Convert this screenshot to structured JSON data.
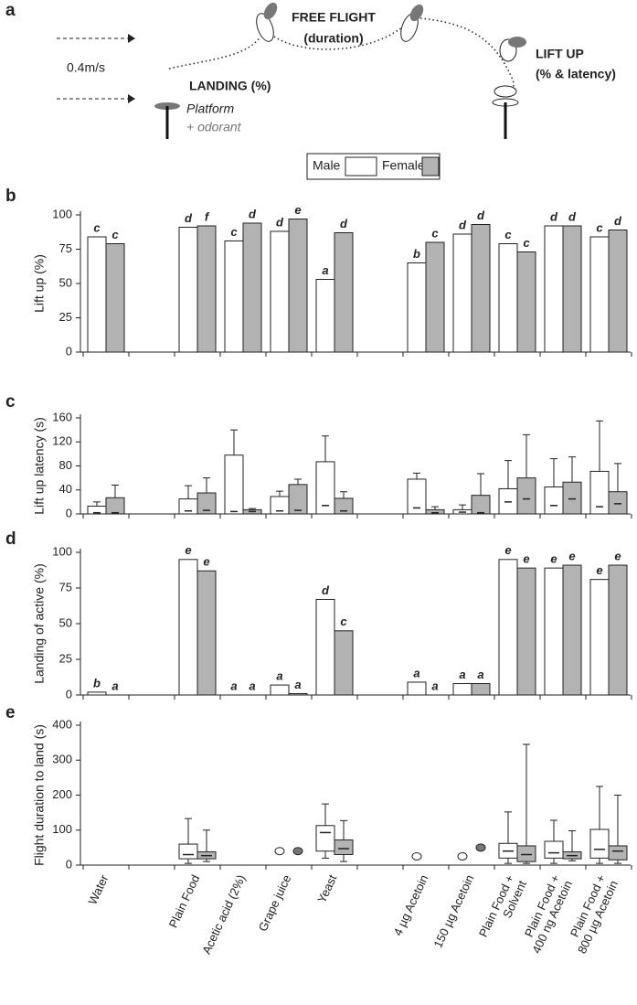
{
  "diagram": {
    "panel": "a",
    "free_flight": "FREE FLIGHT",
    "duration": "(duration)",
    "speed": "0.4m/s",
    "landing": "LANDING (%)",
    "platform": "Platform",
    "odorant": "+ odorant",
    "lift_up": "LIFT UP",
    "lift_up_detail": "(% & latency)"
  },
  "chart_data": [
    {
      "type": "bar",
      "panel": "b",
      "ylabel": "Lift up (%)",
      "ylim": [
        0,
        100
      ],
      "yticks": [
        0,
        25,
        50,
        75,
        100
      ],
      "series": [
        {
          "name": "Male",
          "color": "#ffffff",
          "values": [
            84,
            null,
            91,
            81,
            88,
            53,
            null,
            65,
            86,
            79,
            92,
            84
          ],
          "letters": [
            "c",
            null,
            "d",
            "c",
            "d",
            "a",
            null,
            "b",
            "d",
            "c",
            "d",
            "c"
          ]
        },
        {
          "name": "Female",
          "color": "#b3b3b3",
          "values": [
            79,
            null,
            92,
            94,
            97,
            87,
            null,
            80,
            93,
            73,
            92,
            89
          ],
          "letters": [
            "c",
            null,
            "f",
            "d",
            "e",
            "d",
            null,
            "c",
            "d",
            "c",
            "d",
            "d"
          ]
        }
      ]
    },
    {
      "type": "latency",
      "panel": "c",
      "ylabel": "Lift up latency (s)",
      "ylim": [
        0,
        160
      ],
      "yticks": [
        0,
        40,
        80,
        120,
        160
      ],
      "series": [
        {
          "color": "#ffffff",
          "values": [
            13,
            null,
            25,
            98,
            29,
            87,
            null,
            58,
            7,
            42,
            45,
            71
          ],
          "medians": [
            2,
            null,
            5,
            4,
            5,
            14,
            null,
            10,
            3,
            20,
            14,
            12
          ],
          "whiskers": [
            20,
            null,
            47,
            140,
            38,
            130,
            null,
            68,
            15,
            89,
            92,
            155
          ]
        },
        {
          "color": "#b3b3b3",
          "values": [
            27,
            null,
            35,
            7,
            49,
            26,
            null,
            7,
            31,
            60,
            53,
            37
          ],
          "medians": [
            2,
            null,
            6,
            4,
            6,
            5,
            null,
            2,
            2,
            25,
            25,
            17
          ],
          "whiskers": [
            48,
            null,
            60,
            9,
            58,
            37,
            null,
            12,
            67,
            132,
            95,
            84
          ]
        }
      ]
    },
    {
      "type": "bar",
      "panel": "d",
      "ylabel": "Landing of active (%)",
      "ylim": [
        0,
        100
      ],
      "yticks": [
        0,
        25,
        50,
        75,
        100
      ],
      "series": [
        {
          "color": "#ffffff",
          "values": [
            2,
            null,
            95,
            0,
            7,
            67,
            null,
            9,
            8,
            95,
            89,
            81
          ],
          "letters": [
            "b",
            null,
            "e",
            "a",
            "a",
            "d",
            null,
            "a",
            "a",
            "e",
            "e",
            "e"
          ]
        },
        {
          "color": "#b3b3b3",
          "values": [
            0,
            null,
            87,
            0,
            1,
            45,
            null,
            0,
            8,
            89,
            91,
            91
          ],
          "letters": [
            "a",
            null,
            "e",
            "a",
            "a",
            "c",
            null,
            "a",
            "a",
            "e",
            "e",
            "e"
          ]
        }
      ]
    },
    {
      "type": "box",
      "panel": "e",
      "ylabel": "Flight duration to land (s)",
      "ylim": [
        0,
        400
      ],
      "yticks": [
        0,
        100,
        200,
        300,
        400
      ],
      "categories": [
        "Water",
        null,
        "Plain Food",
        "Acetic acid (2%)",
        "Grape juice",
        "Yeast",
        null,
        "4 µg Acetoin",
        "150 µg Acetoin",
        "Plain Food +\nSolvent",
        "Plain Food +\n400 ng Acetoin",
        "Plain Food +\n800 µg Acetoin"
      ],
      "series": [
        {
          "color": "#ffffff",
          "min": [
            null,
            null,
            5,
            null,
            null,
            20,
            null,
            null,
            null,
            5,
            5,
            5
          ],
          "q1": [
            null,
            null,
            18,
            null,
            null,
            40,
            null,
            null,
            null,
            20,
            20,
            20
          ],
          "median": [
            null,
            null,
            30,
            null,
            40,
            93,
            null,
            25,
            25,
            40,
            35,
            45
          ],
          "q3": [
            null,
            null,
            60,
            null,
            null,
            113,
            null,
            null,
            null,
            62,
            68,
            102
          ],
          "max": [
            null,
            null,
            133,
            null,
            null,
            175,
            null,
            null,
            null,
            152,
            128,
            225
          ]
        },
        {
          "color": "#b3b3b3",
          "min": [
            null,
            null,
            10,
            null,
            null,
            10,
            null,
            null,
            null,
            5,
            12,
            5
          ],
          "q1": [
            null,
            null,
            18,
            null,
            null,
            30,
            null,
            null,
            null,
            10,
            18,
            15
          ],
          "median": [
            null,
            null,
            27,
            null,
            40,
            47,
            null,
            null,
            50,
            30,
            27,
            40
          ],
          "q3": [
            null,
            null,
            38,
            null,
            null,
            72,
            null,
            null,
            null,
            55,
            38,
            55
          ],
          "max": [
            null,
            null,
            100,
            null,
            null,
            127,
            null,
            null,
            null,
            345,
            98,
            200
          ]
        }
      ]
    }
  ]
}
